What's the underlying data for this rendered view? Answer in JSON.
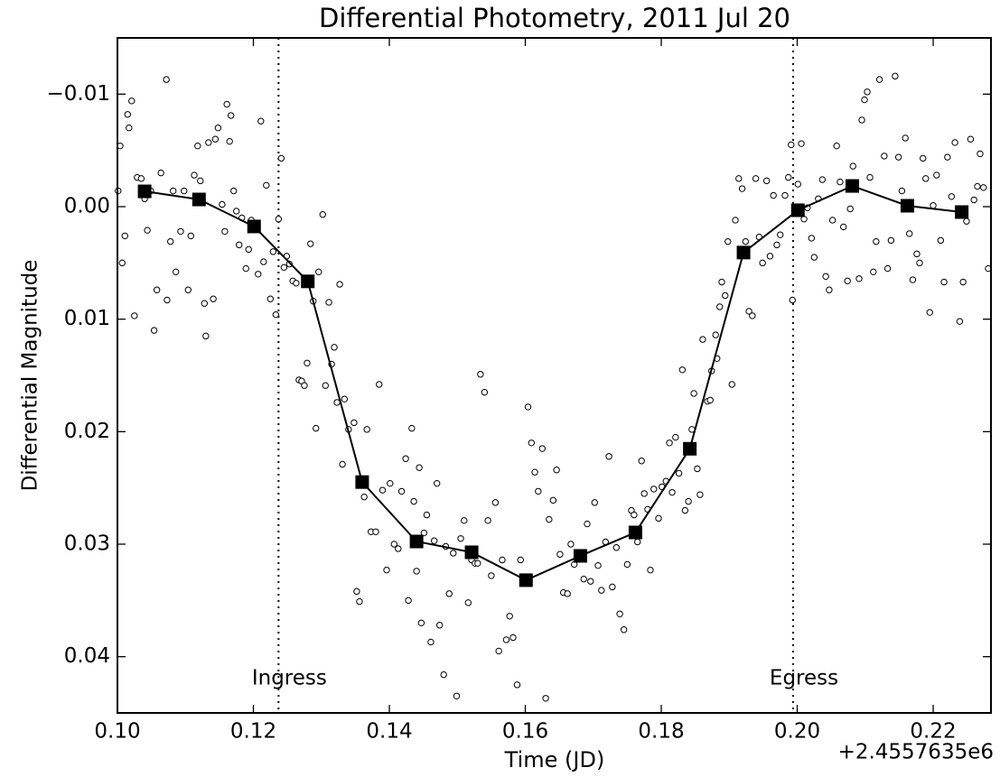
{
  "chart_data": {
    "type": "scatter",
    "title": "Differential Photometry, 2011 Jul 20",
    "xlabel": "Time (JD)",
    "ylabel": "Differential Magnitude",
    "x_offset_text": "+2.4557635e6",
    "xlim": [
      0.1,
      0.2285
    ],
    "ylim": [
      0.045,
      -0.015
    ],
    "xticks": [
      {
        "value": 0.1,
        "label": "0.10"
      },
      0.12,
      0.14,
      0.16,
      0.18,
      {
        "value": 0.2,
        "label": "0.20"
      },
      0.22
    ],
    "yticks": [
      {
        "value": -0.01,
        "label": "−0.01"
      },
      {
        "value": 0,
        "label": "0.00"
      },
      0.01,
      0.02,
      0.03,
      0.04
    ],
    "vlines": [
      {
        "x": 0.1237,
        "label": "Ingress"
      },
      {
        "x": 0.1994,
        "label": "Egress"
      }
    ],
    "series": [
      {
        "marker": "circle",
        "color": "#ffffff",
        "x": [
          0.1001,
          0.1004,
          0.1007,
          0.1011,
          0.1015,
          0.1017,
          0.1021,
          0.1025,
          0.1029,
          0.1035,
          0.104,
          0.1044,
          0.1049,
          0.1054,
          0.1058,
          0.1064,
          0.1072,
          0.1073,
          0.1078,
          0.1082,
          0.1086,
          0.1093,
          0.1098,
          0.1104,
          0.1108,
          0.1113,
          0.1118,
          0.1122,
          0.1128,
          0.113,
          0.1134,
          0.1141,
          0.1144,
          0.1148,
          0.1154,
          0.1158,
          0.1161,
          0.1165,
          0.1167,
          0.1171,
          0.1175,
          0.1179,
          0.1183,
          0.1189,
          0.1193,
          0.1197,
          0.1207,
          0.1211,
          0.1215,
          0.1219,
          0.1225,
          0.1229,
          0.1233,
          0.1237,
          0.1241,
          0.1245,
          0.1249,
          0.1253,
          0.1258,
          0.1263,
          0.1267,
          0.1271,
          0.1275,
          0.1279,
          0.1284,
          0.1288,
          0.1292,
          0.1296,
          0.1302,
          0.1306,
          0.1311,
          0.1315,
          0.1319,
          0.1323,
          0.1327,
          0.1331,
          0.1334,
          0.134,
          0.1348,
          0.1352,
          0.1356,
          0.1363,
          0.1367,
          0.1373,
          0.138,
          0.1385,
          0.139,
          0.1396,
          0.1401,
          0.1407,
          0.1413,
          0.1418,
          0.1424,
          0.1428,
          0.1433,
          0.1436,
          0.144,
          0.1444,
          0.1447,
          0.1451,
          0.1455,
          0.1461,
          0.1466,
          0.147,
          0.1474,
          0.148,
          0.1483,
          0.1488,
          0.1494,
          0.1499,
          0.1505,
          0.151,
          0.1516,
          0.1521,
          0.1526,
          0.153,
          0.1534,
          0.154,
          0.1545,
          0.155,
          0.1556,
          0.1561,
          0.1566,
          0.1572,
          0.1577,
          0.1582,
          0.1588,
          0.1593,
          0.1598,
          0.1604,
          0.1609,
          0.1614,
          0.1619,
          0.1625,
          0.163,
          0.1635,
          0.1641,
          0.1646,
          0.1651,
          0.1656,
          0.1662,
          0.1667,
          0.1672,
          0.1679,
          0.1686,
          0.1691,
          0.1696,
          0.1702,
          0.1707,
          0.1712,
          0.1718,
          0.1723,
          0.1728,
          0.1734,
          0.1739,
          0.1745,
          0.175,
          0.1756,
          0.176,
          0.1765,
          0.1771,
          0.1775,
          0.178,
          0.1784,
          0.1789,
          0.1796,
          0.1801,
          0.1807,
          0.1812,
          0.1816,
          0.1821,
          0.1826,
          0.1831,
          0.1835,
          0.184,
          0.1845,
          0.1848,
          0.1853,
          0.1857,
          0.1861,
          0.1868,
          0.1872,
          0.1874,
          0.188,
          0.1882,
          0.1886,
          0.1889,
          0.1894,
          0.1898,
          0.1904,
          0.1909,
          0.1914,
          0.1919,
          0.1924,
          0.1929,
          0.1934,
          0.1939,
          0.1944,
          0.1949,
          0.1955,
          0.196,
          0.1965,
          0.197,
          0.1975,
          0.1982,
          0.1987,
          0.1991,
          0.1993,
          0.2001,
          0.2006,
          0.201,
          0.2015,
          0.2021,
          0.2025,
          0.2031,
          0.2037,
          0.2042,
          0.2047,
          0.2052,
          0.2058,
          0.2063,
          0.2068,
          0.2074,
          0.2078,
          0.2082,
          0.2091,
          0.2095,
          0.2099,
          0.2103,
          0.2107,
          0.2112,
          0.2116,
          0.2121,
          0.2128,
          0.2133,
          0.2138,
          0.2144,
          0.2149,
          0.2154,
          0.2159,
          0.2165,
          0.217,
          0.2176,
          0.218,
          0.2185,
          0.2189,
          0.2195,
          0.22,
          0.2205,
          0.2211,
          0.2216,
          0.2221,
          0.2227,
          0.2232,
          0.2239,
          0.2244,
          0.2249,
          0.2255,
          0.226,
          0.2265,
          0.2269,
          0.2274,
          0.2281
        ],
        "values": [
          -0.0014,
          -0.0054,
          0.005,
          0.0026,
          -0.0082,
          -0.007,
          -0.0094,
          0.0097,
          -0.0026,
          -0.0025,
          -0.0007,
          0.0021,
          -0.0014,
          0.011,
          0.0074,
          -0.003,
          -0.0113,
          0.0083,
          0.0031,
          -0.0014,
          0.0058,
          0.0022,
          -0.0014,
          0.0074,
          0.0026,
          -0.0028,
          -0.0054,
          -0.0023,
          0.0086,
          0.0115,
          -0.0057,
          0.0082,
          -0.006,
          -0.007,
          -0.0002,
          0.0022,
          -0.0091,
          -0.0058,
          -0.0081,
          -0.0014,
          0.0004,
          0.0034,
          0.001,
          0.0055,
          0.0038,
          0.0012,
          0.006,
          -0.0076,
          0.0049,
          -0.0019,
          0.0082,
          0.004,
          0.0096,
          0.0011,
          -0.0043,
          0.0054,
          0.0044,
          0.0051,
          0.0066,
          0.0068,
          0.0154,
          0.0155,
          0.0159,
          0.0139,
          0.0033,
          0.0084,
          0.0197,
          0.0058,
          0.0007,
          0.0159,
          0.0085,
          0.014,
          0.0125,
          0.0174,
          0.0069,
          0.0229,
          0.0171,
          0.0198,
          0.0192,
          0.0342,
          0.0351,
          0.0258,
          0.0198,
          0.0289,
          0.0289,
          0.0158,
          0.0252,
          0.0323,
          0.0246,
          0.03,
          0.0304,
          0.0253,
          0.0224,
          0.035,
          0.0197,
          0.0262,
          0.0324,
          0.0232,
          0.037,
          0.029,
          0.0274,
          0.0387,
          0.0297,
          0.0246,
          0.0372,
          0.0416,
          0.0302,
          0.0344,
          0.0308,
          0.0435,
          0.0295,
          0.0279,
          0.0352,
          0.0314,
          0.0317,
          0.0317,
          0.0149,
          0.0165,
          0.0279,
          0.0328,
          0.0263,
          0.0395,
          0.0314,
          0.0385,
          0.0364,
          0.0383,
          0.0425,
          0.0314,
          0.0329,
          0.0178,
          0.021,
          0.0236,
          0.0253,
          0.0215,
          0.0437,
          0.0278,
          0.0261,
          0.0234,
          0.0309,
          0.0343,
          0.0344,
          0.03,
          0.0318,
          0.0312,
          0.0331,
          0.0282,
          0.0333,
          0.0263,
          0.0319,
          0.0341,
          0.0298,
          0.0222,
          0.0338,
          0.0303,
          0.0362,
          0.0376,
          0.0318,
          0.027,
          0.0274,
          0.0298,
          0.0226,
          0.0255,
          0.0269,
          0.0323,
          0.0251,
          0.0277,
          0.0249,
          0.0244,
          0.021,
          0.0254,
          0.0205,
          0.0237,
          0.0145,
          0.027,
          0.0262,
          0.0198,
          0.0166,
          0.0233,
          0.0256,
          0.0118,
          0.0173,
          0.0172,
          0.0146,
          0.0114,
          0.0135,
          0.0089,
          0.0067,
          0.0079,
          0.0031,
          0.0158,
          0.0012,
          -0.0025,
          -0.0016,
          0.0031,
          0.0093,
          0.0097,
          -0.0025,
          0.0027,
          0.005,
          -0.0023,
          0.0044,
          -0.001,
          0.0034,
          0.0025,
          -0.001,
          -0.0026,
          -0.0055,
          0.0083,
          -0.002,
          -0.0056,
          0.0011,
          0.0001,
          0.0028,
          0.0045,
          -0.0007,
          -0.0024,
          0.0062,
          0.0074,
          0.0012,
          -0.0054,
          -0.0022,
          0.0018,
          0.0066,
          0.0002,
          -0.0036,
          0.0064,
          -0.0077,
          -0.0095,
          -0.0102,
          -0.0026,
          0.0058,
          0.0031,
          -0.0113,
          -0.0045,
          0.0055,
          0.003,
          -0.0116,
          -0.0044,
          -0.0014,
          -0.0061,
          0.0024,
          0.0065,
          0.0042,
          0.005,
          -0.0043,
          -0.0025,
          0.0094,
          -0.0001,
          -0.0028,
          0.003,
          0.0067,
          -0.0044,
          -0.0009,
          -0.0057,
          0.0102,
          0.0067,
          0.0013,
          -0.006,
          -0.0006,
          -0.0018,
          -0.0047,
          -0.0017,
          0.0055
        ]
      },
      {
        "marker": "square",
        "color": "#000000",
        "line": true,
        "x": [
          0.104,
          0.112,
          0.1201,
          0.128,
          0.136,
          0.144,
          0.1521,
          0.1601,
          0.1681,
          0.1762,
          0.1842,
          0.1921,
          0.2001,
          0.2081,
          0.2162,
          0.2242
        ],
        "values": [
          -0.00136,
          -0.00064,
          0.00176,
          0.00664,
          0.02448,
          0.02976,
          0.03072,
          0.0332,
          0.03104,
          0.02896,
          0.02152,
          0.00408,
          0.00032,
          -0.00184,
          -8e-05,
          0.00048
        ]
      }
    ]
  }
}
